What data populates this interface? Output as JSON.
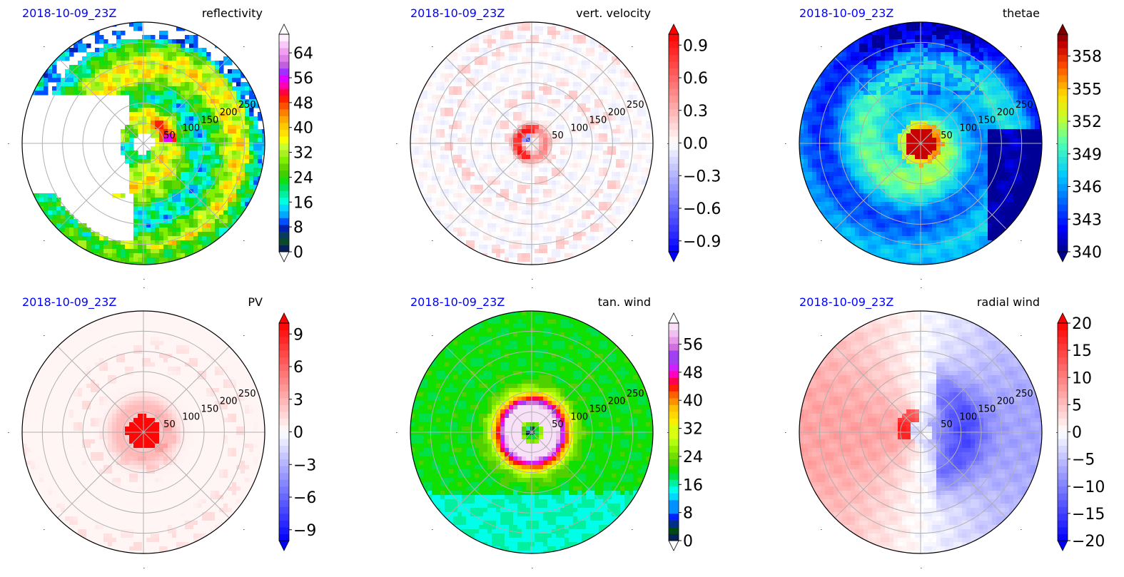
{
  "figure": {
    "timestamp": "2018-10-09_23Z",
    "layout": "2x3 polar panels"
  },
  "chart_data": [
    {
      "type": "heatmap",
      "projection": "polar",
      "title": "reflectivity",
      "timestamp_label": "2018-10-09_23Z",
      "radial_ticks": [
        "50",
        "100",
        "150",
        "200",
        "250"
      ],
      "radial_range": [
        0,
        300
      ],
      "angular_grid_deg": [
        0,
        45,
        90,
        135,
        180,
        225,
        270,
        315
      ],
      "grid": true,
      "colorbar": {
        "ticks": [
          "0",
          "8",
          "16",
          "24",
          "32",
          "40",
          "48",
          "56",
          "64"
        ],
        "range": [
          0,
          70
        ],
        "extend": "both",
        "colors": [
          "#08205a",
          "#0a4a2c",
          "#0a3d5c",
          "#0020b0",
          "#0050ff",
          "#00a8ff",
          "#00d8ff",
          "#00ffe0",
          "#00f0a0",
          "#00e060",
          "#10e010",
          "#40d000",
          "#60d800",
          "#80f000",
          "#a8f020",
          "#c8ff30",
          "#f8ff00",
          "#ffe000",
          "#ffc800",
          "#ffa800",
          "#ff8000",
          "#ff5000",
          "#ff2000",
          "#ff0040",
          "#ff00b0",
          "#e000ff",
          "#a030ff",
          "#c060e0",
          "#e080e8",
          "#f0a0f0",
          "#f8c8f8",
          "#fff0ff"
        ],
        "extend_low_color": "#ffffff",
        "extend_high_color": "#ffffff"
      },
      "description": "Hurricane rain bands; intense (40-50 dBZ) arc NW of center, spiral bands to S/SE, clear eye and no echo west"
    },
    {
      "type": "heatmap",
      "projection": "polar",
      "title": "vert. velocity",
      "timestamp_label": "2018-10-09_23Z",
      "radial_ticks": [
        "50",
        "100",
        "150",
        "200",
        "250"
      ],
      "radial_range": [
        0,
        300
      ],
      "grid": true,
      "colorbar": {
        "ticks": [
          "0.9",
          "0.6",
          "0.3",
          "0.0",
          "−0.3",
          "−0.6",
          "−0.9"
        ],
        "range": [
          -1.0,
          1.0
        ],
        "extend": "both",
        "cmap": "bwr",
        "extend_low_color": "#0000ff",
        "extend_high_color": "#ff0000"
      },
      "description": "Mostly near zero; strong updraft ring in eyewall W/SW of center with adjacent downdraft; scattered updrafts in spiral bands"
    },
    {
      "type": "heatmap",
      "projection": "polar",
      "title": "thetae",
      "timestamp_label": "2018-10-09_23Z",
      "radial_ticks": [
        "50",
        "100",
        "150",
        "200",
        "250"
      ],
      "radial_range": [
        0,
        300
      ],
      "grid": true,
      "colorbar": {
        "ticks": [
          "340",
          "343",
          "346",
          "349",
          "352",
          "355",
          "358"
        ],
        "range": [
          340,
          360
        ],
        "extend": "both",
        "cmap": "jet",
        "extend_low_color": "#00008b",
        "extend_high_color": "#800000"
      },
      "description": "Warm core ~358-360 K within 50 km; 349-352 K spiral extending S; low values 340-343 K in outer NE/E"
    },
    {
      "type": "heatmap",
      "projection": "polar",
      "title": "PV",
      "timestamp_label": "2018-10-09_23Z",
      "radial_ticks": [
        "50",
        "100",
        "150",
        "200",
        "250"
      ],
      "radial_range": [
        0,
        300
      ],
      "grid": true,
      "colorbar": {
        "ticks": [
          "9",
          "6",
          "3",
          "0",
          "−3",
          "−6",
          "−9"
        ],
        "range": [
          -10,
          10
        ],
        "extend": "both",
        "cmap": "bwr",
        "extend_low_color": "#0000ff",
        "extend_high_color": "#ff0000"
      },
      "description": "High PV (>9) core within ~45 km; weak positive streaks in bands elsewhere"
    },
    {
      "type": "heatmap",
      "projection": "polar",
      "title": "tan. wind",
      "timestamp_label": "2018-10-09_23Z",
      "radial_ticks": [
        "50",
        "100",
        "150",
        "200",
        "250"
      ],
      "radial_range": [
        0,
        300
      ],
      "grid": true,
      "colorbar": {
        "ticks": [
          "0",
          "8",
          "16",
          "24",
          "32",
          "40",
          "48",
          "56"
        ],
        "range": [
          0,
          62
        ],
        "extend": "both",
        "extend_low_color": "#ffffff",
        "extend_high_color": "#ffffff"
      },
      "description": "Max tangential wind 48-56 in NW eyewall near 30-50 km; decreasing to ~20 outward; cyan ~16 to the S/SW"
    },
    {
      "type": "heatmap",
      "projection": "polar",
      "title": "radial wind",
      "timestamp_label": "2018-10-09_23Z",
      "radial_ticks": [
        "50",
        "100",
        "150",
        "200",
        "250"
      ],
      "radial_range": [
        0,
        300
      ],
      "grid": true,
      "colorbar": {
        "ticks": [
          "20",
          "15",
          "10",
          "5",
          "0",
          "−5",
          "−10",
          "−15",
          "−20"
        ],
        "range": [
          -20,
          20
        ],
        "extend": "both",
        "cmap": "bwr",
        "extend_low_color": "#0000ff",
        "extend_high_color": "#ff0000"
      },
      "description": "Wavenumber-1 pattern: outflow (+5 to +10) on west half, inflow (-10 to -20) on east half, peak inflow ~100 km E"
    }
  ]
}
